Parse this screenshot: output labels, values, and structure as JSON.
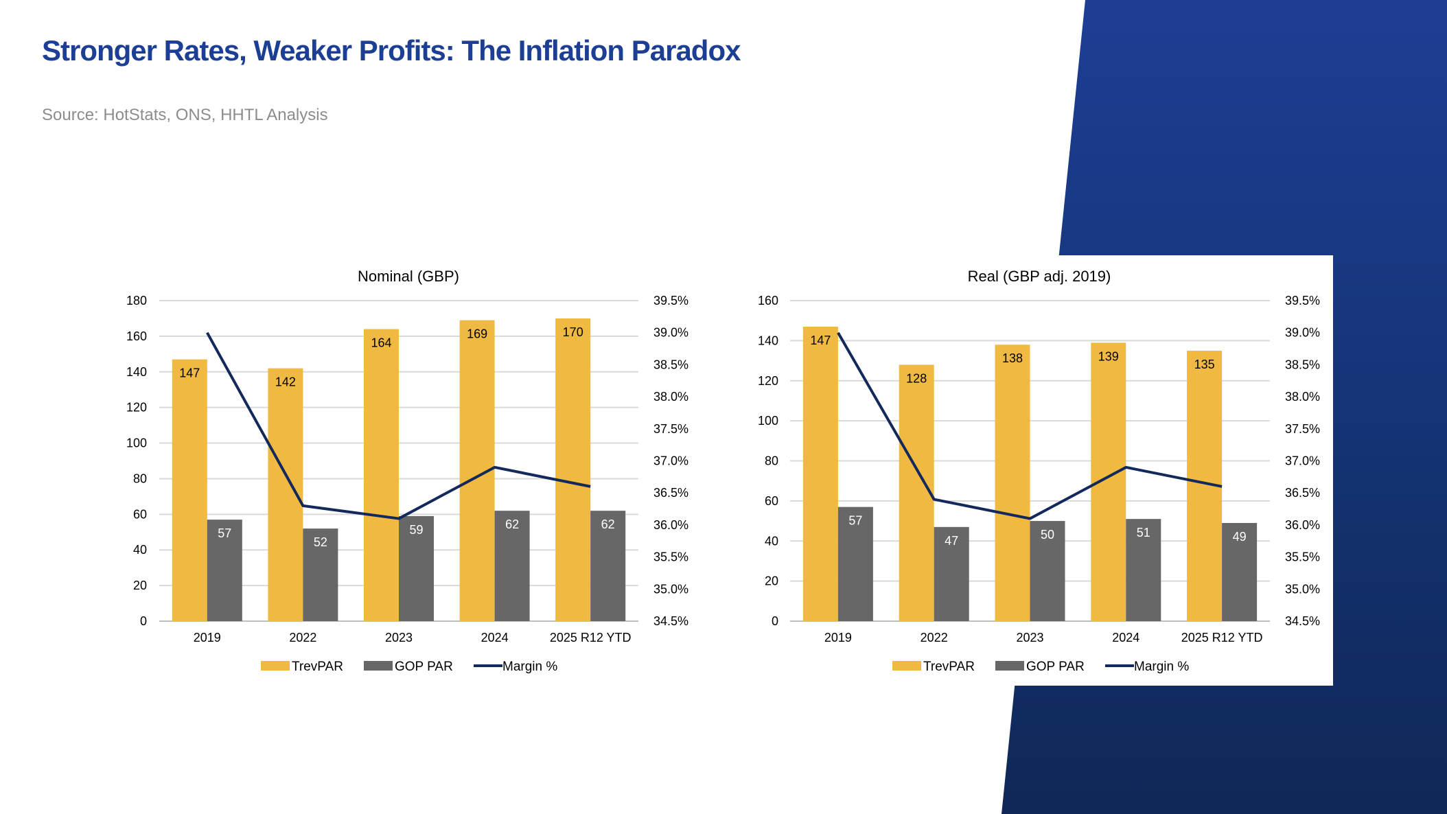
{
  "page": {
    "title": "Stronger Rates, Weaker Profits: The Inflation Paradox",
    "source": "Source: HotStats, ONS, HHTL Analysis"
  },
  "colors": {
    "title": "#1c3f95",
    "trevpar": "#f0b942",
    "gop": "#676767",
    "margin_line": "#13295b",
    "grid": "#d9d9d9",
    "band_top": "#1c3f95",
    "band_bottom": "#0f2857"
  },
  "legend": [
    "TrevPAR",
    "GOP PAR",
    "Margin %"
  ],
  "chart_data": [
    {
      "type": "bar",
      "title": "Nominal (GBP)",
      "categories": [
        "2019",
        "2022",
        "2023",
        "2024",
        "2025 R12 YTD"
      ],
      "series": [
        {
          "name": "TrevPAR",
          "axis": "left",
          "kind": "bar",
          "values": [
            147,
            142,
            164,
            169,
            170
          ]
        },
        {
          "name": "GOP PAR",
          "axis": "left",
          "kind": "bar",
          "values": [
            57,
            52,
            59,
            62,
            62
          ]
        },
        {
          "name": "Margin %",
          "axis": "right",
          "kind": "line",
          "values": [
            39.0,
            36.3,
            36.1,
            36.9,
            36.6
          ]
        }
      ],
      "y_left": {
        "min": 0,
        "max": 180,
        "step": 20,
        "ticks": [
          "0",
          "20",
          "40",
          "60",
          "80",
          "100",
          "120",
          "140",
          "160",
          "180"
        ]
      },
      "y_right": {
        "min": 34.5,
        "max": 39.5,
        "step": 0.5,
        "ticks": [
          "34.5%",
          "35.0%",
          "35.5%",
          "36.0%",
          "36.5%",
          "37.0%",
          "37.5%",
          "38.0%",
          "38.5%",
          "39.0%",
          "39.5%"
        ]
      },
      "legend_position": "bottom"
    },
    {
      "type": "bar",
      "title": "Real (GBP adj. 2019)",
      "categories": [
        "2019",
        "2022",
        "2023",
        "2024",
        "2025 R12 YTD"
      ],
      "series": [
        {
          "name": "TrevPAR",
          "axis": "left",
          "kind": "bar",
          "values": [
            147,
            128,
            138,
            139,
            135
          ]
        },
        {
          "name": "GOP PAR",
          "axis": "left",
          "kind": "bar",
          "values": [
            57,
            47,
            50,
            51,
            49
          ]
        },
        {
          "name": "Margin %",
          "axis": "right",
          "kind": "line",
          "values": [
            39.0,
            36.4,
            36.1,
            36.9,
            36.6
          ]
        }
      ],
      "y_left": {
        "min": 0,
        "max": 160,
        "step": 20,
        "ticks": [
          "0",
          "20",
          "40",
          "60",
          "80",
          "100",
          "120",
          "140",
          "160"
        ]
      },
      "y_right": {
        "min": 34.5,
        "max": 39.5,
        "step": 0.5,
        "ticks": [
          "34.5%",
          "35.0%",
          "35.5%",
          "36.0%",
          "36.5%",
          "37.0%",
          "37.5%",
          "38.0%",
          "38.5%",
          "39.0%",
          "39.5%"
        ]
      },
      "legend_position": "bottom"
    }
  ]
}
